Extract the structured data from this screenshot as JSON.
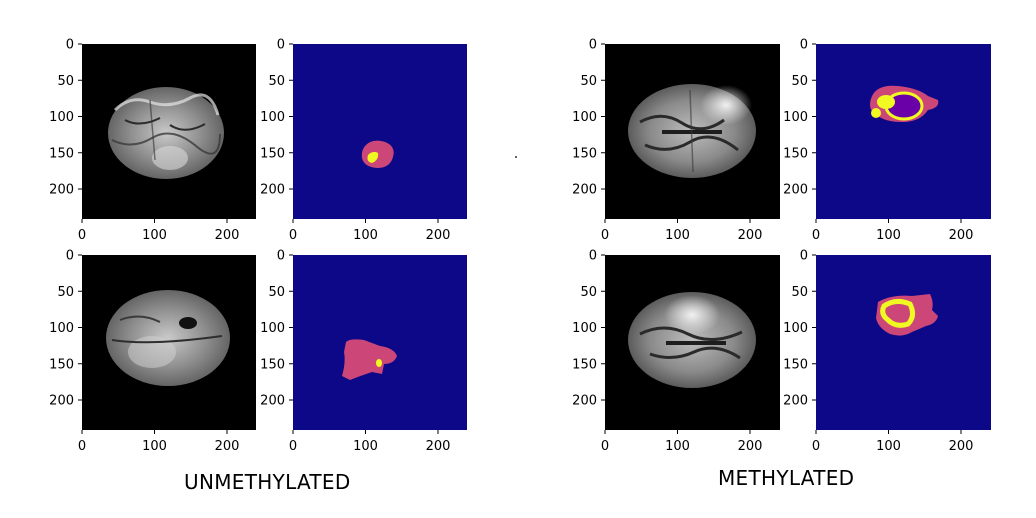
{
  "groups": [
    {
      "caption": "UNMETHYLATED"
    },
    {
      "caption": "METHYLATED"
    }
  ],
  "axes": {
    "x_ticks": [
      "0",
      "100",
      "200"
    ],
    "y_ticks": [
      "0",
      "50",
      "100",
      "150",
      "200"
    ]
  },
  "colors": {
    "background_mask": "#0d0887",
    "tumor_outer": "#cc4778",
    "tumor_core": "#f0f921",
    "necrotic": "#6a00a8",
    "mri_background": "#000000"
  },
  "panels": [
    {
      "kind": "mri",
      "group": "unmethylated",
      "row": 1
    },
    {
      "kind": "segmentation-mask",
      "group": "unmethylated",
      "row": 1
    },
    {
      "kind": "mri",
      "group": "methylated",
      "row": 1
    },
    {
      "kind": "segmentation-mask",
      "group": "methylated",
      "row": 1
    },
    {
      "kind": "mri",
      "group": "unmethylated",
      "row": 2
    },
    {
      "kind": "segmentation-mask",
      "group": "unmethylated",
      "row": 2
    },
    {
      "kind": "mri",
      "group": "methylated",
      "row": 2
    },
    {
      "kind": "segmentation-mask",
      "group": "methylated",
      "row": 2
    }
  ]
}
